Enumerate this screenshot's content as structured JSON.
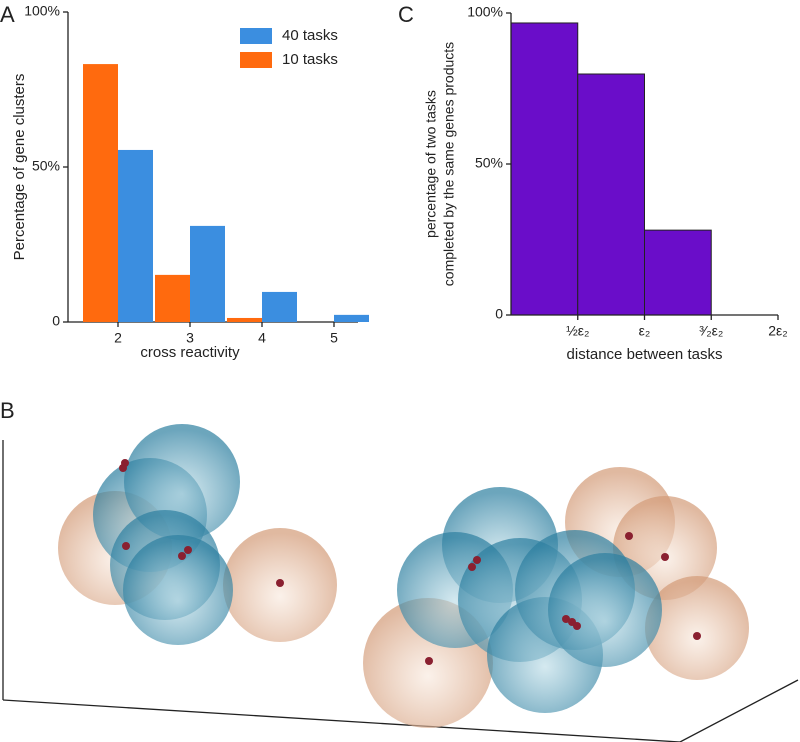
{
  "panel_labels": [
    "A",
    "B",
    "C"
  ],
  "chart_data": [
    {
      "type": "bar",
      "xlabel": "cross reactivity",
      "ylabel": "Percentage of gene clusters",
      "categories": [
        "2",
        "3",
        "4",
        "5"
      ],
      "series": [
        {
          "name": "40 tasks",
          "color": "#3b8ee0",
          "values": [
            55.5,
            31,
            9.7,
            2.3
          ]
        },
        {
          "name": "10 tasks",
          "color": "#ff6a0e",
          "values": [
            83.2,
            15.2,
            1.3,
            0
          ]
        }
      ],
      "ylim": [
        0,
        100
      ],
      "yticks": [
        0,
        {
          "value": 50,
          "label": "50%"
        },
        {
          "value": 100,
          "label": "100%"
        }
      ],
      "legend": "upper right"
    },
    {
      "type": "histogram",
      "xlabel": "distance between tasks",
      "ylabel": [
        "percentage of two tasks",
        "completed by the same genes products"
      ],
      "bins": [
        0,
        0.5,
        1,
        1.5
      ],
      "counts": [
        96.7,
        79.8,
        28.1
      ],
      "color": "#6a0dc9",
      "xlim": [
        0,
        2
      ],
      "xticks": [
        {
          "value": 0.5,
          "label": "½ε₂"
        },
        {
          "value": 1,
          "label": "ε₂"
        },
        {
          "value": 1.5,
          "label": "³⁄₂ε₂"
        },
        {
          "value": 2,
          "label": "2ε₂"
        }
      ],
      "ylim": [
        0,
        100
      ],
      "yticks": [
        0,
        {
          "value": 50,
          "label": "50%"
        },
        {
          "value": 100,
          "label": "100%"
        }
      ]
    }
  ]
}
